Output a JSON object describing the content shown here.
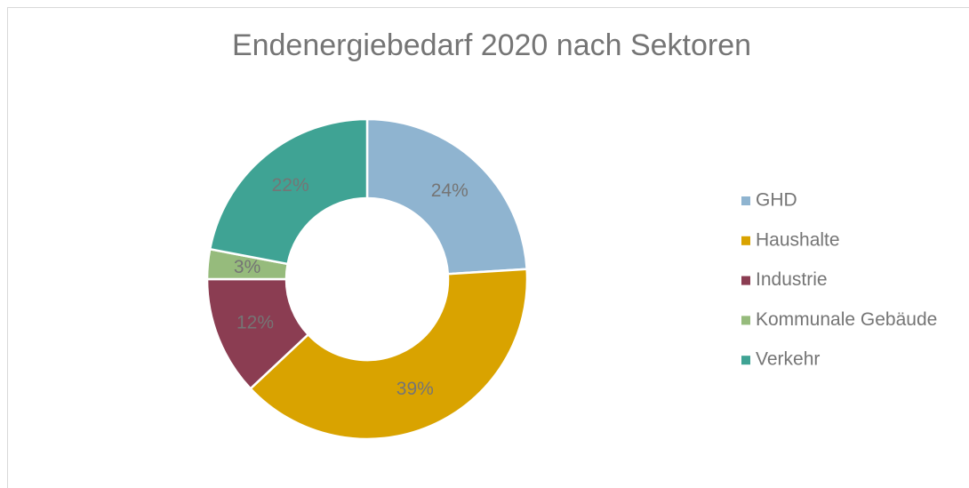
{
  "chart_data": {
    "type": "donut",
    "title": "Endenergiebedarf 2020 nach Sektoren",
    "categories": [
      "GHD",
      "Haushalte",
      "Industrie",
      "Kommunale Gebäude",
      "Verkehr"
    ],
    "values": [
      24,
      39,
      12,
      3,
      22
    ],
    "value_labels": [
      "24%",
      "39%",
      "12%",
      "3%",
      "22%"
    ],
    "colors": [
      "#8fb4d0",
      "#d9a300",
      "#8b3d52",
      "#96bb7c",
      "#3fa394"
    ],
    "legend": "right"
  }
}
